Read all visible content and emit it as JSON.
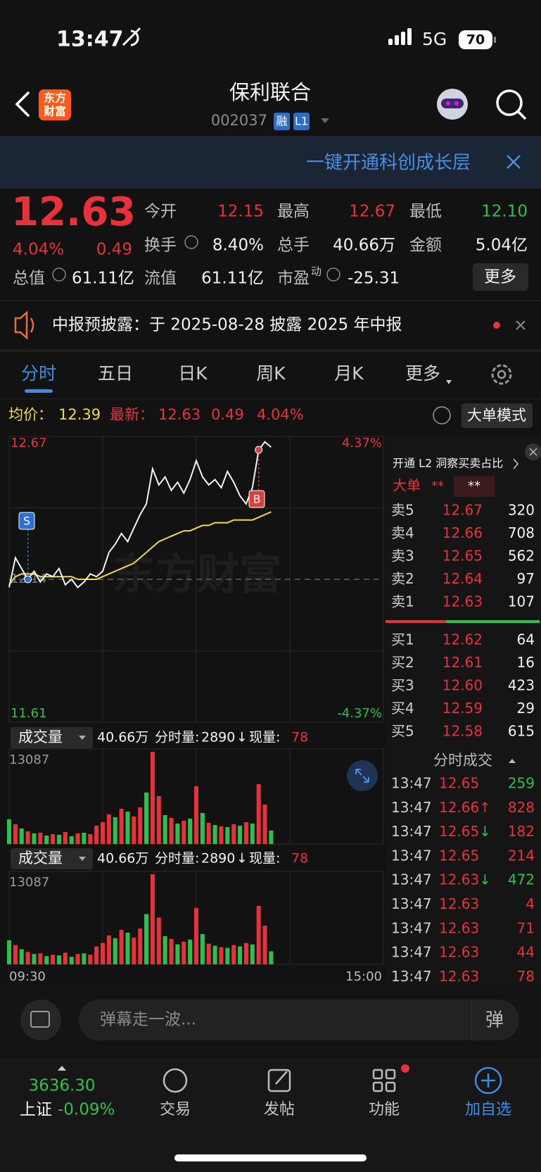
{
  "status_bar": {
    "time": "13:47",
    "network": "5G",
    "battery": "70"
  },
  "header": {
    "logo": [
      "东方",
      "财富"
    ],
    "title": "保利联合",
    "code": "002037",
    "badges": [
      "融",
      "L1"
    ]
  },
  "banner": {
    "text": "一键开通科创成长层"
  },
  "quote": {
    "price": "12.63",
    "change_pct": "4.04%",
    "change": "0.49",
    "stats": [
      {
        "label": "今开",
        "value": "12.15"
      },
      {
        "label": "最高",
        "value": "12.67"
      },
      {
        "label": "最低",
        "value": "12.10"
      },
      {
        "label": "换手",
        "value": "8.40%"
      },
      {
        "label": "总手",
        "value": "40.66万"
      },
      {
        "label": "金额",
        "value": "5.04亿"
      },
      {
        "label": "总值",
        "value": "61.11亿"
      },
      {
        "label": "流值",
        "value": "61.11亿"
      },
      {
        "label": "市盈",
        "superscript": "动",
        "value": "-25.31"
      }
    ],
    "more": "更多"
  },
  "notice": {
    "text": "中报预披露：于 2025-08-28 披露 2025 年中报"
  },
  "tabs": [
    "分时",
    "五日",
    "日K",
    "周K",
    "月K",
    "更多"
  ],
  "chart_data": [
    {
      "type": "line",
      "ylim": [
        11.61,
        12.67
      ],
      "yticks": [
        11.61,
        12.14,
        12.67
      ],
      "y2lim": [
        -4.37,
        4.37
      ],
      "y2ticks": [
        {
          "value": -4.37,
          "label": "-4.37%"
        },
        {
          "value": 4.37,
          "label": "4.37%"
        }
      ],
      "x_labels": [
        "09:30",
        "15:00"
      ],
      "watermark": "东方财富",
      "info": {
        "avg": "12.39",
        "latest": "12.63",
        "change": "0.49",
        "change_pct": "4.04%"
      },
      "mode_button": "大单模式",
      "annotations": [
        {
          "text": "S"
        },
        {
          "text": "B"
        }
      ],
      "series": [
        {
          "name": "最新：",
          "color": "#f2f2f2",
          "values": [
            12.11,
            12.22,
            12.18,
            12.14,
            12.17,
            12.13,
            12.16,
            12.15,
            12.18,
            12.12,
            12.14,
            12.11,
            12.13,
            12.16,
            12.15,
            12.17,
            12.24,
            12.27,
            12.31,
            12.28,
            12.33,
            12.38,
            12.42,
            12.55,
            12.49,
            12.52,
            12.47,
            12.5,
            12.46,
            12.51,
            12.58,
            12.52,
            12.49,
            12.51,
            12.48,
            12.54,
            12.5,
            12.45,
            12.42,
            12.48,
            12.62,
            12.65,
            12.63
          ]
        },
        {
          "name": "均价：",
          "color": "#f0d848",
          "values": [
            12.12,
            12.15,
            12.16,
            12.16,
            12.16,
            12.15,
            12.15,
            12.15,
            12.15,
            12.15,
            12.15,
            12.14,
            12.14,
            12.14,
            12.14,
            12.15,
            12.16,
            12.17,
            12.18,
            12.19,
            12.2,
            12.22,
            12.24,
            12.26,
            12.28,
            12.29,
            12.3,
            12.31,
            12.32,
            12.32,
            12.33,
            12.34,
            12.34,
            12.35,
            12.35,
            12.35,
            12.36,
            12.36,
            12.36,
            12.36,
            12.37,
            12.38,
            12.39
          ]
        }
      ]
    },
    {
      "type": "bar",
      "title": "成交量",
      "total": "40.66万",
      "segment_label": "分时量:",
      "segment": "2890",
      "arrow": "↓",
      "current_label": "现量:",
      "current": "78",
      "ylim": [
        0,
        13087
      ],
      "yticks": [
        13087
      ],
      "values": [
        3500,
        2800,
        2200,
        1800,
        1500,
        1600,
        1200,
        1400,
        1300,
        1700,
        1100,
        1500,
        1600,
        1400,
        2600,
        3100,
        4200,
        3800,
        5000,
        4600,
        3900,
        5200,
        7300,
        13087,
        6800,
        4100,
        3700,
        2900,
        3300,
        3600,
        8200,
        4400,
        3000,
        2700,
        2500,
        2400,
        2800,
        2600,
        3100,
        2900,
        8500,
        5600,
        1900
      ],
      "colors": [
        "#2bc24a",
        "#e8313a",
        "#2bc24a",
        "#e8313a",
        "#2bc24a",
        "#e8313a",
        "#2bc24a",
        "#e8313a",
        "#2bc24a",
        "#e8313a",
        "#2bc24a",
        "#e8313a",
        "#2bc24a",
        "#e8313a",
        "#e8313a",
        "#e8313a",
        "#e8313a",
        "#2bc24a",
        "#e8313a",
        "#2bc24a",
        "#e8313a",
        "#e8313a",
        "#2bc24a",
        "#e8313a",
        "#e8313a",
        "#2bc24a",
        "#e8313a",
        "#2bc24a",
        "#e8313a",
        "#2bc24a",
        "#e8313a",
        "#2bc24a",
        "#e8313a",
        "#2bc24a",
        "#e8313a",
        "#2bc24a",
        "#e8313a",
        "#2bc24a",
        "#e8313a",
        "#2bc24a",
        "#e8313a",
        "#e8313a",
        "#2bc24a"
      ]
    }
  ],
  "order_book": {
    "l2_text": "开通 L2 洞察买卖占比",
    "big_order": "大单",
    "big_values": [
      "**",
      "**"
    ],
    "asks": [
      {
        "label": "卖5",
        "price": "12.67",
        "volume": "320"
      },
      {
        "label": "卖4",
        "price": "12.66",
        "volume": "708"
      },
      {
        "label": "卖3",
        "price": "12.65",
        "volume": "562"
      },
      {
        "label": "卖2",
        "price": "12.64",
        "volume": "97"
      },
      {
        "label": "卖1",
        "price": "12.63",
        "volume": "107"
      }
    ],
    "bids": [
      {
        "label": "买1",
        "price": "12.62",
        "volume": "64"
      },
      {
        "label": "买2",
        "price": "12.61",
        "volume": "16"
      },
      {
        "label": "买3",
        "price": "12.60",
        "volume": "423"
      },
      {
        "label": "买4",
        "price": "12.59",
        "volume": "29"
      },
      {
        "label": "买5",
        "price": "12.58",
        "volume": "615"
      }
    ]
  },
  "trades": {
    "title": "分时成交",
    "rows": [
      {
        "time": "13:47",
        "price": "12.65",
        "volume": "259",
        "volume_color": "#2bc24a"
      },
      {
        "time": "13:47",
        "price": "12.66",
        "arrow": "↑",
        "arrow_color": "#e8313a",
        "volume": "828",
        "volume_color": "#e8313a"
      },
      {
        "time": "13:47",
        "price": "12.65",
        "arrow": "↓",
        "arrow_color": "#2bc24a",
        "volume": "182",
        "volume_color": "#e8313a"
      },
      {
        "time": "13:47",
        "price": "12.65",
        "volume": "214",
        "volume_color": "#e8313a"
      },
      {
        "time": "13:47",
        "price": "12.63",
        "arrow": "↓",
        "arrow_color": "#2bc24a",
        "volume": "472",
        "volume_color": "#2bc24a"
      },
      {
        "time": "13:47",
        "price": "12.63",
        "volume": "4",
        "volume_color": "#e8313a"
      },
      {
        "time": "13:47",
        "price": "12.63",
        "volume": "71",
        "volume_color": "#e8313a"
      },
      {
        "time": "13:47",
        "price": "12.63",
        "volume": "44",
        "volume_color": "#e8313a"
      },
      {
        "time": "13:47",
        "price": "12.63",
        "volume": "78",
        "volume_color": "#e8313a"
      }
    ]
  },
  "comment_bar": {
    "placeholder": "弹幕走一波...",
    "button": "弹"
  },
  "nav": {
    "index_value": "3636.30",
    "index_name": "上证",
    "index_change": "-0.09%",
    "items": [
      "交易",
      "发帖",
      "功能",
      "加自选"
    ]
  }
}
